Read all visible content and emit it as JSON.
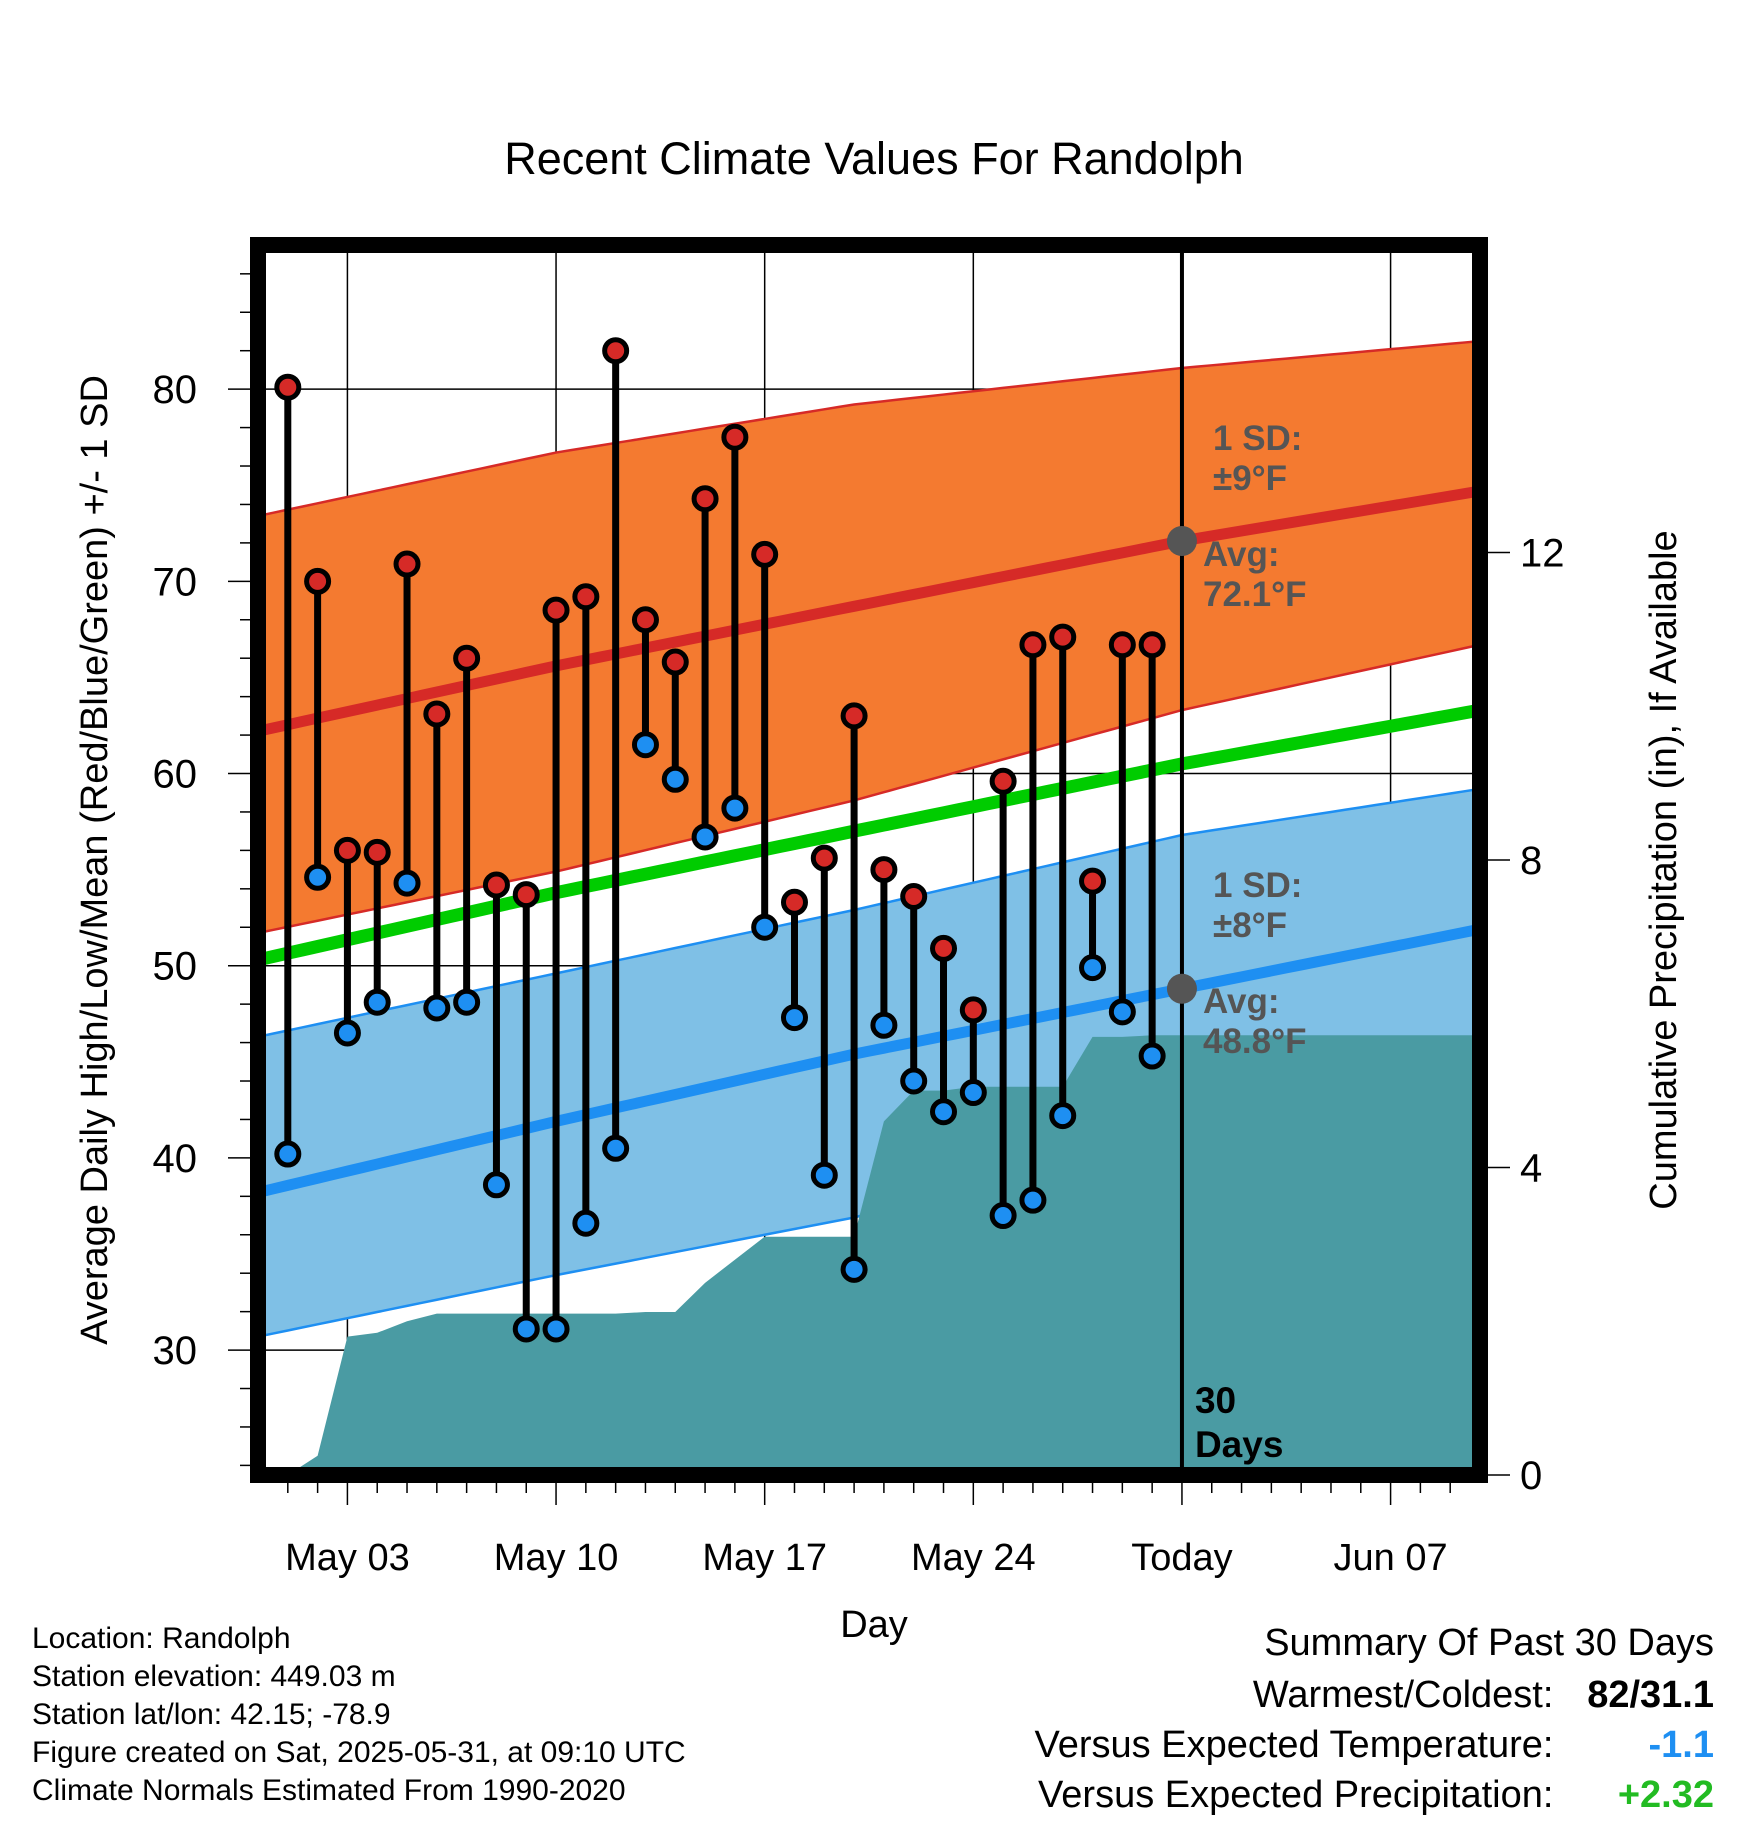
{
  "chart_data": {
    "type": "line",
    "title": "Recent Climate Values For Randolph",
    "xlabel": "Day",
    "ylabel": "Average Daily High/Low/Mean (Red/Blue/Green) +/- 1 SD",
    "y2label": "Cumulative Precipitation (in), If Available",
    "ylim": [
      23.5,
      87.5
    ],
    "y2lim": [
      0,
      16
    ],
    "y_ticks": [
      30,
      40,
      50,
      60,
      70,
      80
    ],
    "y2_ticks": [
      0,
      4,
      8,
      12
    ],
    "x_tick_labels": [
      "May 03",
      "May 10",
      "May 17",
      "May 24",
      "Today",
      "Jun 07"
    ],
    "x_tick_dates": [
      "2025-05-03",
      "2025-05-10",
      "2025-05-17",
      "2025-05-24",
      "2025-05-31",
      "2025-06-07"
    ],
    "x_range": [
      "2025-04-30",
      "2025-06-10"
    ],
    "grid": true,
    "today": "2025-05-31",
    "days_label": [
      "30",
      "Days"
    ],
    "daily": {
      "dates": [
        "2025-05-01",
        "2025-05-02",
        "2025-05-03",
        "2025-05-04",
        "2025-05-05",
        "2025-05-06",
        "2025-05-07",
        "2025-05-08",
        "2025-05-09",
        "2025-05-10",
        "2025-05-11",
        "2025-05-12",
        "2025-05-13",
        "2025-05-14",
        "2025-05-15",
        "2025-05-16",
        "2025-05-17",
        "2025-05-18",
        "2025-05-19",
        "2025-05-20",
        "2025-05-21",
        "2025-05-22",
        "2025-05-23",
        "2025-05-24",
        "2025-05-25",
        "2025-05-26",
        "2025-05-27",
        "2025-05-28",
        "2025-05-29",
        "2025-05-30"
      ],
      "highs": [
        80.1,
        70.0,
        56.0,
        55.9,
        70.9,
        63.1,
        66.0,
        54.2,
        53.7,
        68.5,
        69.2,
        82.0,
        68.0,
        65.8,
        74.3,
        77.5,
        71.4,
        53.3,
        55.6,
        63.0,
        55.0,
        53.6,
        50.9,
        47.7,
        59.6,
        66.7,
        67.1,
        54.4,
        66.7,
        66.7
      ],
      "lows": [
        40.2,
        54.6,
        46.5,
        48.1,
        54.3,
        47.8,
        48.1,
        38.6,
        31.1,
        31.1,
        36.6,
        40.5,
        61.5,
        59.7,
        56.7,
        58.2,
        52.0,
        47.3,
        39.1,
        34.2,
        46.9,
        44.0,
        42.4,
        43.4,
        37.0,
        37.8,
        42.2,
        49.9,
        47.6,
        45.3
      ]
    },
    "normals": {
      "dates": [
        "2025-04-30",
        "2025-05-10",
        "2025-05-20",
        "2025-05-31",
        "2025-06-10"
      ],
      "avg_high": [
        62.2,
        65.6,
        68.7,
        72.1,
        74.7
      ],
      "high_sd_upper": [
        73.4,
        76.7,
        79.2,
        81.1,
        82.5
      ],
      "high_sd_lower": [
        51.7,
        54.9,
        58.6,
        63.3,
        66.7
      ],
      "avg_mean": [
        50.3,
        53.8,
        57.0,
        60.5,
        63.3
      ],
      "avg_low": [
        38.2,
        41.9,
        45.4,
        48.8,
        51.9
      ],
      "low_sd_upper": [
        46.3,
        49.6,
        52.9,
        56.8,
        59.2
      ],
      "low_sd_lower": [
        30.7,
        33.9,
        36.9,
        41.2,
        44.7
      ]
    },
    "precipitation": {
      "dates": [
        "2025-05-01",
        "2025-05-02",
        "2025-05-03",
        "2025-05-04",
        "2025-05-05",
        "2025-05-06",
        "2025-05-07",
        "2025-05-08",
        "2025-05-09",
        "2025-05-10",
        "2025-05-11",
        "2025-05-12",
        "2025-05-13",
        "2025-05-14",
        "2025-05-15",
        "2025-05-16",
        "2025-05-17",
        "2025-05-18",
        "2025-05-19",
        "2025-05-20",
        "2025-05-21",
        "2025-05-22",
        "2025-05-23",
        "2025-05-24",
        "2025-05-25",
        "2025-05-26",
        "2025-05-27",
        "2025-05-28",
        "2025-05-29",
        "2025-05-30",
        "2025-05-31",
        "2025-06-10"
      ],
      "cumulative": [
        0.0,
        0.25,
        1.8,
        1.85,
        2.0,
        2.1,
        2.1,
        2.1,
        2.1,
        2.1,
        2.1,
        2.1,
        2.12,
        2.12,
        2.5,
        2.8,
        3.1,
        3.1,
        3.1,
        3.1,
        4.6,
        5.0,
        5.0,
        5.05,
        5.05,
        5.05,
        5.05,
        5.7,
        5.7,
        5.72,
        5.72,
        5.72
      ]
    },
    "annotations": {
      "high_sd": [
        "1 SD:",
        "±9°F"
      ],
      "high_avg": [
        "Avg:",
        "72.1°F"
      ],
      "low_sd": [
        "1 SD:",
        "±8°F"
      ],
      "low_avg": [
        "Avg:",
        "48.8°F"
      ]
    },
    "colors": {
      "high_band": "#f47a30",
      "high_line": "#d62a27",
      "mean_line": "#00cc00",
      "low_band": "#7fc0e6",
      "low_line": "#1e8ff2",
      "precip": "#4a9ba3",
      "high_marker": "#d62a27",
      "low_marker": "#1e8ff2",
      "annotation": "#555555"
    }
  },
  "info": {
    "location": "Location: Randolph",
    "elevation": "Station elevation: 449.03 m",
    "latlon": "Station lat/lon: 42.15; -78.9",
    "created": "Figure created on Sat, 2025-05-31, at 09:10 UTC",
    "normals": "Climate Normals Estimated From 1990-2020"
  },
  "summary": {
    "title": "Summary Of Past 30 Days",
    "warmest_label": "Warmest/Coldest:",
    "warmest_value": "82/31.1",
    "temp_label": "Versus Expected Temperature:",
    "temp_value": "-1.1",
    "temp_color": "#1e8ff2",
    "precip_label": "Versus Expected Precipitation:",
    "precip_value": "+2.32",
    "precip_color": "#22bb22"
  }
}
